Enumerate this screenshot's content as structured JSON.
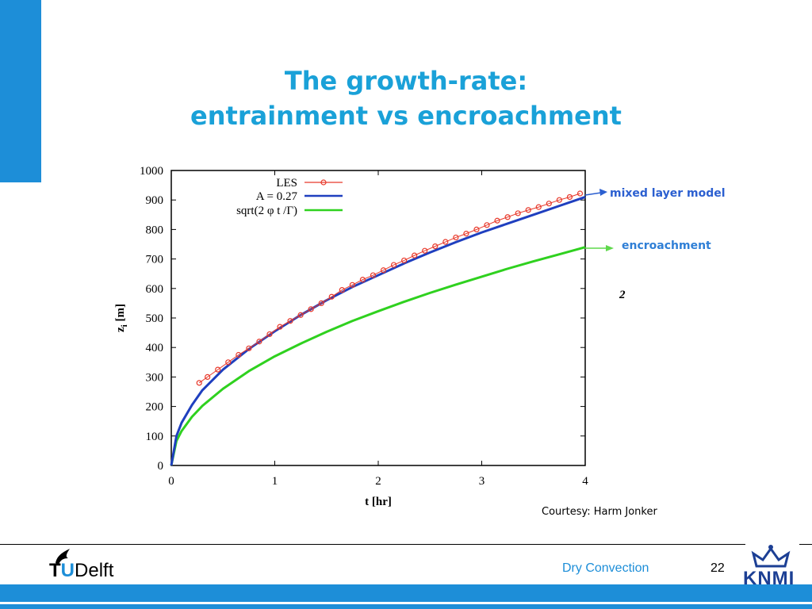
{
  "slide": {
    "title_line1": "The growth-rate:",
    "title_line2": "entrainment vs encroachment",
    "courtesy": "Courtesy: Harm Jonker",
    "footer_label": "Dry Convection",
    "page_number": "22",
    "logo_left": "Delft",
    "logo_left_prefix": "T",
    "logo_left_u": "U",
    "logo_right": "KNMI",
    "accent_color": "#1d8ed8"
  },
  "chart_data": {
    "type": "line",
    "title": "",
    "xlabel": "t [hr]",
    "ylabel": "z_i [m]",
    "ylabel_main": "z",
    "ylabel_sub": "i",
    "ylabel_unit": " [m]",
    "xlim": [
      0,
      4
    ],
    "ylim": [
      0,
      1000
    ],
    "xticks": [
      0,
      1,
      2,
      3,
      4
    ],
    "yticks": [
      0,
      100,
      200,
      300,
      400,
      500,
      600,
      700,
      800,
      900,
      1000
    ],
    "legend_placement": "top-left",
    "series": [
      {
        "name": "LES",
        "kind": "markers",
        "color": "#e8392b",
        "x": [
          0.27,
          0.35,
          0.45,
          0.55,
          0.65,
          0.75,
          0.85,
          0.95,
          1.05,
          1.15,
          1.25,
          1.35,
          1.45,
          1.55,
          1.65,
          1.75,
          1.85,
          1.95,
          2.05,
          2.15,
          2.25,
          2.35,
          2.45,
          2.55,
          2.65,
          2.75,
          2.85,
          2.95,
          3.05,
          3.15,
          3.25,
          3.35,
          3.45,
          3.55,
          3.65,
          3.75,
          3.85,
          3.95
        ],
        "y": [
          280,
          300,
          325,
          350,
          375,
          397,
          420,
          445,
          470,
          490,
          510,
          530,
          550,
          572,
          595,
          612,
          630,
          645,
          662,
          680,
          695,
          712,
          728,
          743,
          758,
          773,
          786,
          800,
          815,
          830,
          842,
          855,
          866,
          876,
          888,
          900,
          910,
          922
        ]
      },
      {
        "name": "A = 0.27",
        "kind": "line",
        "color": "#1f3fbf",
        "x": [
          0,
          0.05,
          0.1,
          0.2,
          0.3,
          0.5,
          0.75,
          1,
          1.25,
          1.5,
          1.75,
          2,
          2.25,
          2.5,
          2.75,
          3,
          3.25,
          3.5,
          3.75,
          4
        ],
        "y": [
          0,
          100,
          145,
          205,
          255,
          325,
          395,
          455,
          510,
          560,
          605,
          645,
          685,
          722,
          757,
          790,
          820,
          850,
          880,
          910
        ]
      },
      {
        "name": "sqrt(2 φ t /Γ)",
        "kind": "line",
        "color": "#2fd11f",
        "x": [
          0,
          0.05,
          0.1,
          0.2,
          0.3,
          0.5,
          0.75,
          1,
          1.25,
          1.5,
          1.75,
          2,
          2.25,
          2.5,
          2.75,
          3,
          3.25,
          3.5,
          3.75,
          4
        ],
        "y": [
          0,
          83,
          117,
          165,
          202,
          260,
          320,
          370,
          413,
          453,
          490,
          523,
          555,
          585,
          613,
          640,
          667,
          692,
          716,
          740
        ]
      }
    ],
    "annotations": [
      {
        "text": "mixed layer model",
        "color": "#2b5fd0"
      },
      {
        "text": "encroachment",
        "color": "#2f7fd6"
      },
      {
        "text": "2"
      }
    ]
  }
}
